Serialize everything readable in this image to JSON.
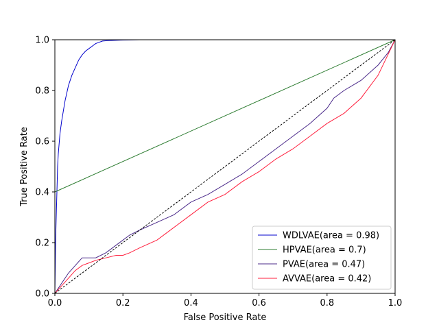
{
  "chart_data": {
    "type": "line",
    "title": "",
    "xlabel": "False Positive Rate",
    "ylabel": "True Positive Rate",
    "xlim": [
      0,
      1
    ],
    "ylim": [
      0,
      1
    ],
    "xticks": [
      "0.0",
      "0.2",
      "0.4",
      "0.6",
      "0.8",
      "1.0"
    ],
    "yticks": [
      "0.0",
      "0.2",
      "0.4",
      "0.6",
      "0.8",
      "1.0"
    ],
    "grid": false,
    "legend_position": "lower-right",
    "series": [
      {
        "name": "WDLVAE(area = 0.98)",
        "color": "#0000cc",
        "x": [
          0,
          0.002,
          0.004,
          0.006,
          0.008,
          0.01,
          0.015,
          0.02,
          0.025,
          0.03,
          0.04,
          0.05,
          0.06,
          0.07,
          0.08,
          0.09,
          0.1,
          0.11,
          0.12,
          0.13,
          0.14,
          0.16,
          0.18,
          0.2,
          0.25,
          0.3,
          0.5,
          0.8,
          1.0
        ],
        "y": [
          0,
          0.2,
          0.3,
          0.4,
          0.5,
          0.55,
          0.63,
          0.68,
          0.72,
          0.76,
          0.82,
          0.86,
          0.89,
          0.92,
          0.94,
          0.955,
          0.965,
          0.975,
          0.985,
          0.99,
          0.995,
          0.997,
          0.998,
          0.999,
          1.0,
          1.0,
          1.0,
          1.0,
          1.0
        ]
      },
      {
        "name": "HPVAE(area = 0.7)",
        "color": "#2e7d32",
        "x": [
          0,
          0,
          1
        ],
        "y": [
          0,
          0.4,
          1
        ]
      },
      {
        "name": "PVAE(area = 0.47)",
        "color": "#4b2a8a",
        "x": [
          0,
          0.02,
          0.04,
          0.06,
          0.08,
          0.1,
          0.12,
          0.15,
          0.18,
          0.2,
          0.22,
          0.25,
          0.3,
          0.35,
          0.4,
          0.45,
          0.5,
          0.55,
          0.6,
          0.65,
          0.7,
          0.75,
          0.8,
          0.82,
          0.85,
          0.9,
          0.95,
          0.98,
          1.0
        ],
        "y": [
          0,
          0.04,
          0.08,
          0.11,
          0.14,
          0.14,
          0.14,
          0.16,
          0.19,
          0.21,
          0.23,
          0.25,
          0.28,
          0.31,
          0.36,
          0.39,
          0.43,
          0.47,
          0.52,
          0.57,
          0.62,
          0.67,
          0.73,
          0.77,
          0.8,
          0.84,
          0.9,
          0.95,
          1.0
        ]
      },
      {
        "name": "AVVAE(area = 0.42)",
        "color": "#ff1f3d",
        "x": [
          0,
          0.02,
          0.04,
          0.06,
          0.08,
          0.1,
          0.12,
          0.15,
          0.18,
          0.2,
          0.22,
          0.25,
          0.3,
          0.35,
          0.4,
          0.45,
          0.5,
          0.55,
          0.6,
          0.65,
          0.7,
          0.75,
          0.8,
          0.85,
          0.9,
          0.95,
          1.0
        ],
        "y": [
          0,
          0.03,
          0.06,
          0.09,
          0.11,
          0.12,
          0.13,
          0.14,
          0.15,
          0.15,
          0.16,
          0.18,
          0.21,
          0.26,
          0.31,
          0.36,
          0.39,
          0.44,
          0.48,
          0.53,
          0.57,
          0.62,
          0.67,
          0.71,
          0.77,
          0.86,
          1.0
        ]
      },
      {
        "name": "",
        "color": "#000000",
        "dashed": true,
        "x": [
          0,
          1
        ],
        "y": [
          0,
          1
        ]
      }
    ]
  }
}
